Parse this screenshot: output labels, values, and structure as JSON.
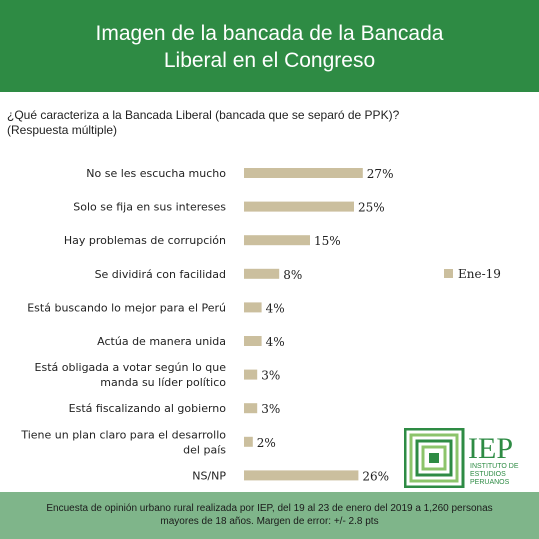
{
  "header": {
    "title_line1": "Imagen de la bancada de la Bancada",
    "title_line2": "Liberal en el Congreso"
  },
  "question": {
    "line1": "¿Qué caracteriza a la Bancada Liberal (bancada que se separó de PPK)?",
    "line2": "(Respuesta múltiple)"
  },
  "chart_data": {
    "type": "bar",
    "orientation": "horizontal",
    "categories": [
      [
        "No se les escucha mucho"
      ],
      [
        "Solo se fija en sus intereses"
      ],
      [
        "Hay problemas de corrupción"
      ],
      [
        "Se dividirá con facilidad"
      ],
      [
        "Está buscando lo mejor para el Perú"
      ],
      [
        "Actúa de manera unida"
      ],
      [
        "Está obligada a votar según lo que",
        "manda su líder político"
      ],
      [
        "Está fiscalizando al gobierno"
      ],
      [
        "Tiene un plan claro para el desarrollo",
        "del país"
      ],
      [
        "NS/NP"
      ]
    ],
    "series": [
      {
        "name": "Ene-19",
        "values": [
          27,
          25,
          15,
          8,
          4,
          4,
          3,
          3,
          2,
          26
        ],
        "labels": [
          "27%",
          "25%",
          "15%",
          "8%",
          "4%",
          "4%",
          "3%",
          "3%",
          "2%",
          "26%"
        ],
        "color": "#cbbf9e"
      }
    ],
    "legend_position": "right",
    "grid": false
  },
  "logo": {
    "text_big": "IEP",
    "text_line1": "INSTITUTO DE",
    "text_line2": "ESTUDIOS",
    "text_line3": "PERUANOS",
    "color": "#2e8b44"
  },
  "footer": {
    "line1": "Encuesta de opinión urbano rural realizada por IEP, del 19 al 23 de enero del 2019 a 1,260 personas",
    "line2": "mayores de 18 años. Margen de error: +/- 2.8 pts"
  }
}
